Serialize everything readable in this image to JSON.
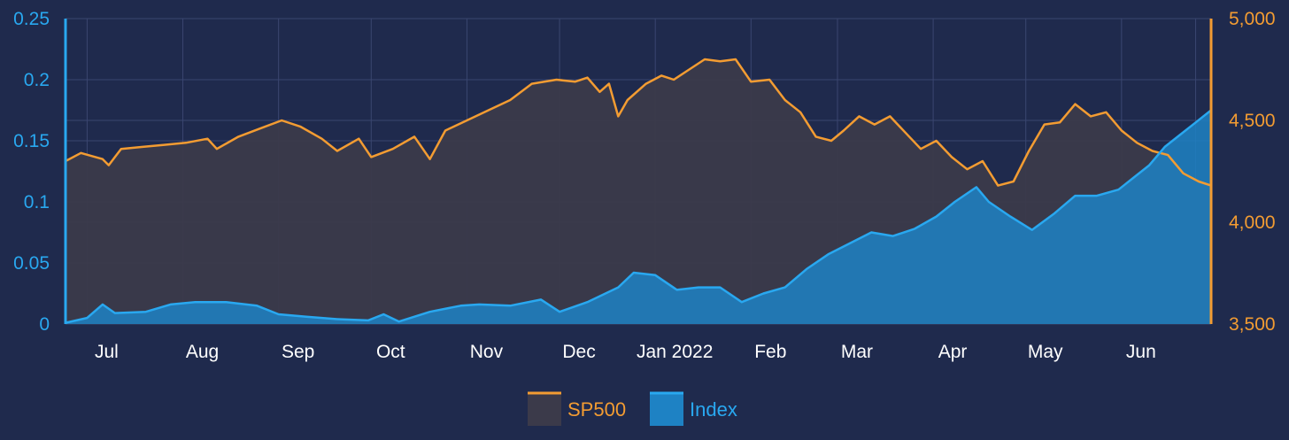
{
  "chart_data": {
    "type": "area",
    "x_categories": [
      "Jul",
      "Aug",
      "Sep",
      "Oct",
      "Nov",
      "Dec",
      "Jan 2022",
      "Feb",
      "Mar",
      "Apr",
      "May",
      "Jun"
    ],
    "x_range": [
      "2021-06-24",
      "2022-06-30"
    ],
    "y_left": {
      "ylim": [
        0,
        0.25
      ],
      "ticks": [
        "0",
        "0.05",
        "0.1",
        "0.15",
        "0.2",
        "0.25"
      ]
    },
    "y_right": {
      "ylim": [
        3500,
        5000
      ],
      "ticks": [
        "3,500",
        "4,000",
        "4,500",
        "5,000"
      ]
    },
    "grid": true,
    "legend_position": "bottom-center",
    "colors": {
      "background": "#1f2a4d",
      "grid": "#3a4670",
      "sp500_line": "#f39c32",
      "sp500_fill": "#3b3a4a",
      "index_line": "#29a8f0",
      "index_fill": "#1e82c4"
    },
    "series": [
      {
        "name": "SP500",
        "axis": "right",
        "points": [
          [
            "2021-06-24",
            4300
          ],
          [
            "2021-06-29",
            4340
          ],
          [
            "2021-07-06",
            4310
          ],
          [
            "2021-07-08",
            4280
          ],
          [
            "2021-07-12",
            4360
          ],
          [
            "2021-07-19",
            4370
          ],
          [
            "2021-07-26",
            4380
          ],
          [
            "2021-08-02",
            4390
          ],
          [
            "2021-08-09",
            4410
          ],
          [
            "2021-08-12",
            4360
          ],
          [
            "2021-08-19",
            4420
          ],
          [
            "2021-08-26",
            4460
          ],
          [
            "2021-09-02",
            4500
          ],
          [
            "2021-09-08",
            4470
          ],
          [
            "2021-09-15",
            4410
          ],
          [
            "2021-09-20",
            4350
          ],
          [
            "2021-09-27",
            4410
          ],
          [
            "2021-10-01",
            4320
          ],
          [
            "2021-10-08",
            4360
          ],
          [
            "2021-10-15",
            4420
          ],
          [
            "2021-10-20",
            4310
          ],
          [
            "2021-10-25",
            4450
          ],
          [
            "2021-11-01",
            4500
          ],
          [
            "2021-11-08",
            4550
          ],
          [
            "2021-11-15",
            4600
          ],
          [
            "2021-11-22",
            4680
          ],
          [
            "2021-11-30",
            4700
          ],
          [
            "2021-12-06",
            4690
          ],
          [
            "2021-12-10",
            4710
          ],
          [
            "2021-12-14",
            4640
          ],
          [
            "2021-12-17",
            4680
          ],
          [
            "2021-12-20",
            4520
          ],
          [
            "2021-12-23",
            4600
          ],
          [
            "2021-12-29",
            4680
          ],
          [
            "2022-01-03",
            4720
          ],
          [
            "2022-01-07",
            4700
          ],
          [
            "2022-01-12",
            4750
          ],
          [
            "2022-01-17",
            4800
          ],
          [
            "2022-01-22",
            4790
          ],
          [
            "2022-01-27",
            4800
          ],
          [
            "2022-02-01",
            4690
          ],
          [
            "2022-02-07",
            4700
          ],
          [
            "2022-02-12",
            4600
          ],
          [
            "2022-02-17",
            4540
          ],
          [
            "2022-02-22",
            4420
          ],
          [
            "2022-02-27",
            4400
          ],
          [
            "2022-03-03",
            4450
          ],
          [
            "2022-03-08",
            4520
          ],
          [
            "2022-03-13",
            4480
          ],
          [
            "2022-03-18",
            4520
          ],
          [
            "2022-03-23",
            4440
          ],
          [
            "2022-03-28",
            4360
          ],
          [
            "2022-04-02",
            4400
          ],
          [
            "2022-04-07",
            4320
          ],
          [
            "2022-04-12",
            4260
          ],
          [
            "2022-04-17",
            4300
          ],
          [
            "2022-04-22",
            4180
          ],
          [
            "2022-04-27",
            4200
          ],
          [
            "2022-05-02",
            4350
          ],
          [
            "2022-05-07",
            4480
          ],
          [
            "2022-05-12",
            4490
          ],
          [
            "2022-05-17",
            4580
          ],
          [
            "2022-05-22",
            4520
          ],
          [
            "2022-05-27",
            4540
          ],
          [
            "2022-06-01",
            4450
          ],
          [
            "2022-06-06",
            4390
          ],
          [
            "2022-06-11",
            4350
          ],
          [
            "2022-06-16",
            4330
          ],
          [
            "2022-06-21",
            4240
          ],
          [
            "2022-06-26",
            4200
          ],
          [
            "2022-06-30",
            4180
          ]
        ]
      },
      {
        "name": "Index",
        "axis": "left",
        "points": [
          [
            "2021-06-24",
            0.001
          ],
          [
            "2021-07-01",
            0.005
          ],
          [
            "2021-07-06",
            0.016
          ],
          [
            "2021-07-10",
            0.009
          ],
          [
            "2021-07-20",
            0.01
          ],
          [
            "2021-07-28",
            0.016
          ],
          [
            "2021-08-05",
            0.018
          ],
          [
            "2021-08-15",
            0.018
          ],
          [
            "2021-08-25",
            0.015
          ],
          [
            "2021-09-01",
            0.008
          ],
          [
            "2021-09-10",
            0.006
          ],
          [
            "2021-09-20",
            0.004
          ],
          [
            "2021-09-30",
            0.003
          ],
          [
            "2021-10-05",
            0.008
          ],
          [
            "2021-10-10",
            0.002
          ],
          [
            "2021-10-20",
            0.01
          ],
          [
            "2021-10-30",
            0.015
          ],
          [
            "2021-11-05",
            0.016
          ],
          [
            "2021-11-15",
            0.015
          ],
          [
            "2021-11-25",
            0.02
          ],
          [
            "2021-12-01",
            0.01
          ],
          [
            "2021-12-10",
            0.018
          ],
          [
            "2021-12-20",
            0.03
          ],
          [
            "2021-12-25",
            0.042
          ],
          [
            "2022-01-01",
            0.04
          ],
          [
            "2022-01-08",
            0.028
          ],
          [
            "2022-01-15",
            0.03
          ],
          [
            "2022-01-22",
            0.03
          ],
          [
            "2022-01-29",
            0.018
          ],
          [
            "2022-02-05",
            0.025
          ],
          [
            "2022-02-12",
            0.03
          ],
          [
            "2022-02-19",
            0.045
          ],
          [
            "2022-02-26",
            0.057
          ],
          [
            "2022-03-05",
            0.066
          ],
          [
            "2022-03-12",
            0.075
          ],
          [
            "2022-03-19",
            0.072
          ],
          [
            "2022-03-26",
            0.078
          ],
          [
            "2022-04-02",
            0.088
          ],
          [
            "2022-04-08",
            0.1
          ],
          [
            "2022-04-15",
            0.112
          ],
          [
            "2022-04-19",
            0.1
          ],
          [
            "2022-04-26",
            0.088
          ],
          [
            "2022-05-03",
            0.077
          ],
          [
            "2022-05-10",
            0.09
          ],
          [
            "2022-05-17",
            0.105
          ],
          [
            "2022-05-24",
            0.105
          ],
          [
            "2022-05-31",
            0.11
          ],
          [
            "2022-06-05",
            0.12
          ],
          [
            "2022-06-10",
            0.13
          ],
          [
            "2022-06-15",
            0.145
          ],
          [
            "2022-06-20",
            0.155
          ],
          [
            "2022-06-25",
            0.165
          ],
          [
            "2022-06-30",
            0.175
          ]
        ]
      }
    ]
  },
  "legend": {
    "items": [
      {
        "label": "SP500",
        "text_color": "#f39c32",
        "swatch_fill": "#3b3a4a",
        "swatch_line": "#f39c32"
      },
      {
        "label": "Index",
        "text_color": "#29a8f0",
        "swatch_fill": "#1e82c4",
        "swatch_line": "#29a8f0"
      }
    ]
  }
}
